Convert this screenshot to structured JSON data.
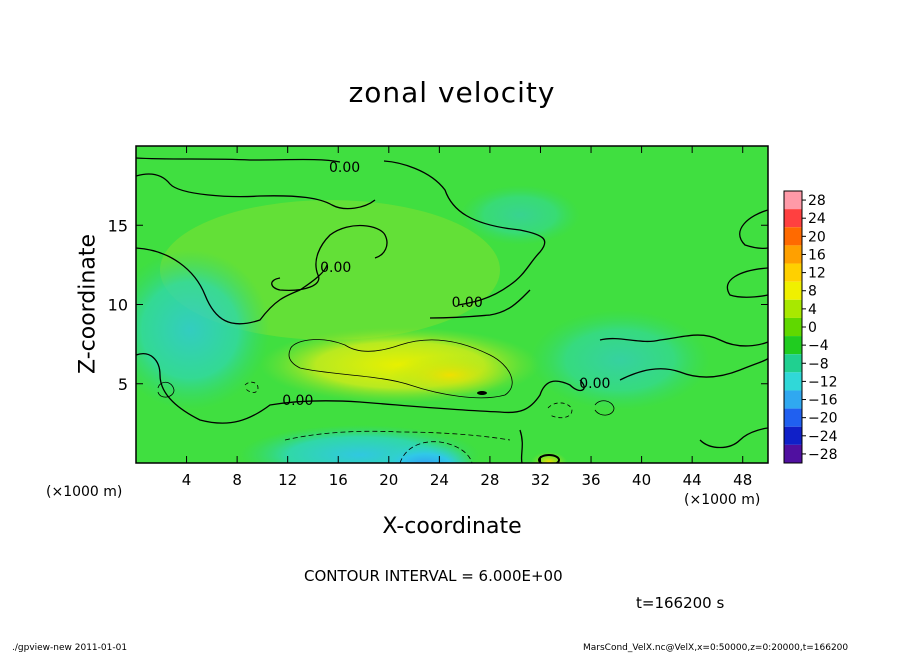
{
  "title": "zonal velocity",
  "xlabel": "X-coordinate",
  "ylabel": "Z-coordinate",
  "x_unit_left": "(×1000 m)",
  "x_unit_right": "(×1000 m)",
  "contour_interval_text": "CONTOUR INTERVAL = 6.000E+00",
  "time_text": "t=166200 s",
  "footer_left": "./gpview-new  2011-01-01",
  "footer_right": "MarsCond_VelX.nc@VelX,x=0:50000,z=0:20000,t=166200",
  "colors": {
    "background_field": "#3fe03f",
    "contour_line": "#000000"
  },
  "chart_data": {
    "type": "heatmap",
    "title": "zonal velocity",
    "xlabel": "X-coordinate",
    "ylabel": "Z-coordinate",
    "xlim": [
      0,
      50
    ],
    "ylim": [
      0,
      20
    ],
    "xticks": [
      4,
      8,
      12,
      16,
      20,
      24,
      28,
      32,
      36,
      40,
      44,
      48
    ],
    "yticks": [
      5,
      10,
      15
    ],
    "grid": false,
    "colorbar": {
      "levels": [
        28,
        24,
        20,
        16,
        12,
        8,
        4,
        0,
        -4,
        -8,
        -12,
        -16,
        -20,
        -24,
        -28
      ],
      "colors": [
        "#ff9aa8",
        "#ff4040",
        "#ff6a00",
        "#ffa000",
        "#ffd000",
        "#f0f000",
        "#a8e800",
        "#60d800",
        "#20cc20",
        "#20d090",
        "#30d8d8",
        "#30a8f0",
        "#2060f0",
        "#1020c8",
        "#5010a0"
      ]
    },
    "contour_labels": [
      {
        "text": "0.00",
        "x": 16.5,
        "y": 18.6
      },
      {
        "text": "0.00",
        "x": 15.8,
        "y": 12.3
      },
      {
        "text": "0.00",
        "x": 26.2,
        "y": 10.1
      },
      {
        "text": "0.00",
        "x": 36.3,
        "y": 5.0
      },
      {
        "text": "0.00",
        "x": 12.8,
        "y": 3.9
      }
    ],
    "field_features": [
      {
        "kind": "positive-max",
        "center": [
          24,
          6
        ],
        "value_approx": 8
      },
      {
        "kind": "negative-min",
        "center": [
          24,
          0.5
        ],
        "value_approx": -12
      },
      {
        "kind": "negative-region",
        "center": [
          4,
          8
        ],
        "value_approx": -4
      },
      {
        "kind": "positive-min",
        "center": [
          33,
          0.3
        ],
        "value_approx": 12
      }
    ]
  }
}
